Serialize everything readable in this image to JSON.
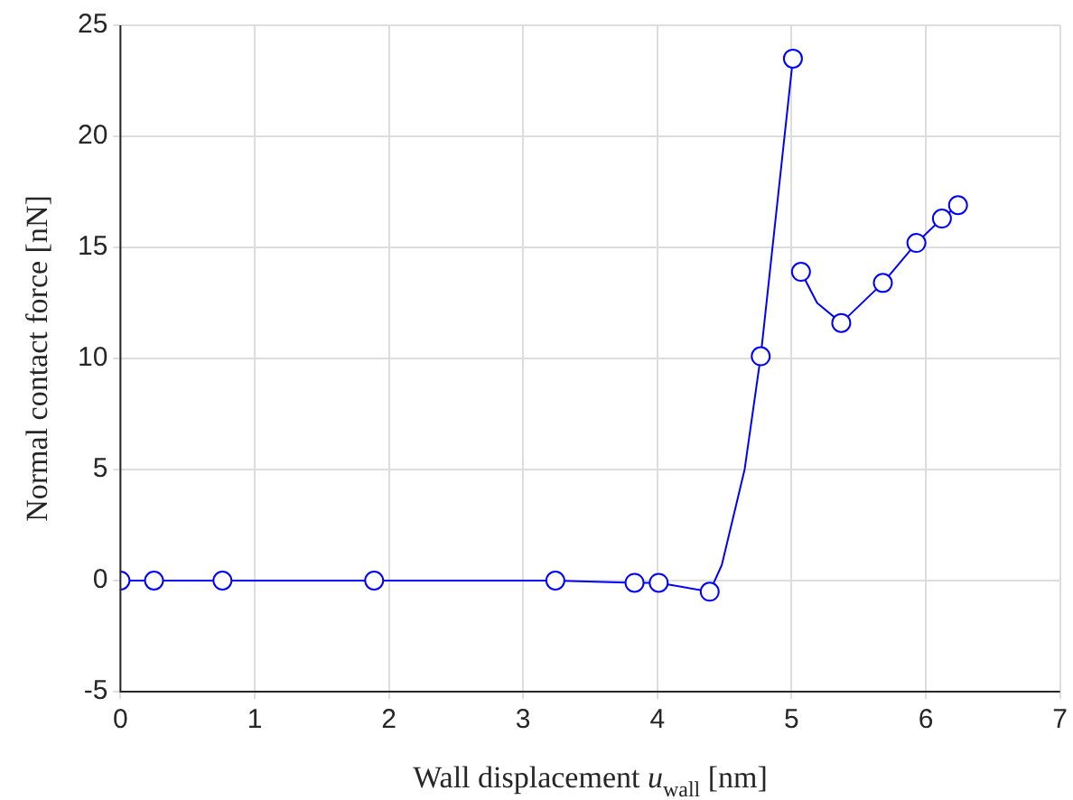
{
  "chart_data": {
    "type": "line",
    "xlabel": "Wall displacement u$_{wall}$ [nm]",
    "ylabel": "Normal contact force [nN]",
    "xlim": [
      0,
      7
    ],
    "xticks": [
      0,
      1,
      2,
      3,
      4,
      5,
      6,
      7
    ],
    "ylim": [
      -5,
      25
    ],
    "yticks": [
      -5,
      0,
      5,
      10,
      15,
      20,
      25
    ],
    "grid": true,
    "legend": false,
    "series": [
      {
        "type": "line",
        "marker": "none",
        "line_style": "solid",
        "color": "#0000ff",
        "x": [
          0,
          0.25,
          0.76,
          1.89,
          3.24,
          3.83,
          4.01,
          4.39,
          4.48,
          4.65,
          4.77,
          5.01
        ],
        "values": [
          0,
          0,
          0,
          0,
          0,
          -0.1,
          -0.1,
          -0.5,
          0.7,
          5.0,
          10.1,
          23.5
        ]
      },
      {
        "type": "line",
        "marker": "none",
        "line_style": "solid",
        "color": "#0000ff",
        "x": [
          5.07,
          5.19,
          5.37,
          5.68,
          5.93,
          6.12,
          6.24
        ],
        "values": [
          13.9,
          12.5,
          11.6,
          13.4,
          15.2,
          16.3,
          16.9
        ]
      },
      {
        "type": "scatter",
        "marker": "circle",
        "color": "#0000ff",
        "x": [
          0,
          0.25,
          0.76,
          1.89,
          3.24,
          3.83,
          4.01,
          4.39,
          4.77,
          5.01,
          5.07,
          5.37,
          5.68,
          5.93,
          6.12,
          6.24
        ],
        "values": [
          0,
          0,
          0,
          0,
          0,
          -0.1,
          -0.1,
          -0.5,
          10.1,
          23.5,
          13.9,
          11.6,
          13.4,
          15.2,
          16.3,
          16.9
        ]
      }
    ]
  }
}
